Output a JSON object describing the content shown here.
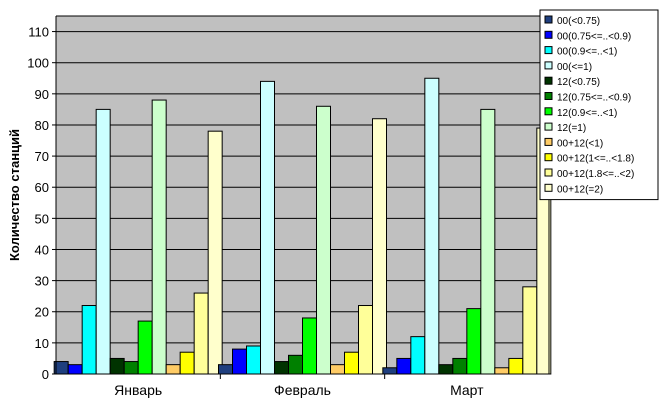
{
  "chart_data": {
    "type": "bar",
    "ylabel": "Количество станций",
    "xlabel": "",
    "ylim": [
      0,
      115
    ],
    "yticks": [
      0,
      10,
      20,
      30,
      40,
      50,
      60,
      70,
      80,
      90,
      100,
      110
    ],
    "grid": "horizontal",
    "legend_position": "top-right",
    "categories": [
      "Январь",
      "Февраль",
      "Март"
    ],
    "series": [
      {
        "name": "00(<0.75)",
        "color": "#1f3f7f",
        "values": [
          4,
          3,
          2
        ]
      },
      {
        "name": "00(0.75<=..<0.9)",
        "color": "#0000ff",
        "values": [
          3,
          8,
          5
        ]
      },
      {
        "name": "00(0.9<=..<1)",
        "color": "#00ffff",
        "values": [
          22,
          9,
          12
        ]
      },
      {
        "name": "00(<=1)",
        "color": "#ccffff",
        "values": [
          85,
          94,
          95
        ]
      },
      {
        "name": "12(<0.75)",
        "color": "#003300",
        "values": [
          5,
          4,
          3
        ]
      },
      {
        "name": "12(0.75<=..<0.9)",
        "color": "#008000",
        "values": [
          4,
          6,
          5
        ]
      },
      {
        "name": "12(0.9<=..<1)",
        "color": "#00ff00",
        "values": [
          17,
          18,
          21
        ]
      },
      {
        "name": "12(=1)",
        "color": "#ccffcc",
        "values": [
          88,
          86,
          85
        ]
      },
      {
        "name": "00+12(<1)",
        "color": "#ffcc66",
        "values": [
          3,
          3,
          2
        ]
      },
      {
        "name": "00+12(1<=..<1.8)",
        "color": "#ffff00",
        "values": [
          7,
          7,
          5
        ]
      },
      {
        "name": "00+12(1.8<=..<2)",
        "color": "#ffff99",
        "values": [
          26,
          22,
          28
        ]
      },
      {
        "name": "00+12(=2)",
        "color": "#ffffcc",
        "values": [
          78,
          82,
          79
        ]
      }
    ],
    "colors": {
      "plot_background": "#c0c0c0",
      "gridline": "#000000"
    }
  }
}
